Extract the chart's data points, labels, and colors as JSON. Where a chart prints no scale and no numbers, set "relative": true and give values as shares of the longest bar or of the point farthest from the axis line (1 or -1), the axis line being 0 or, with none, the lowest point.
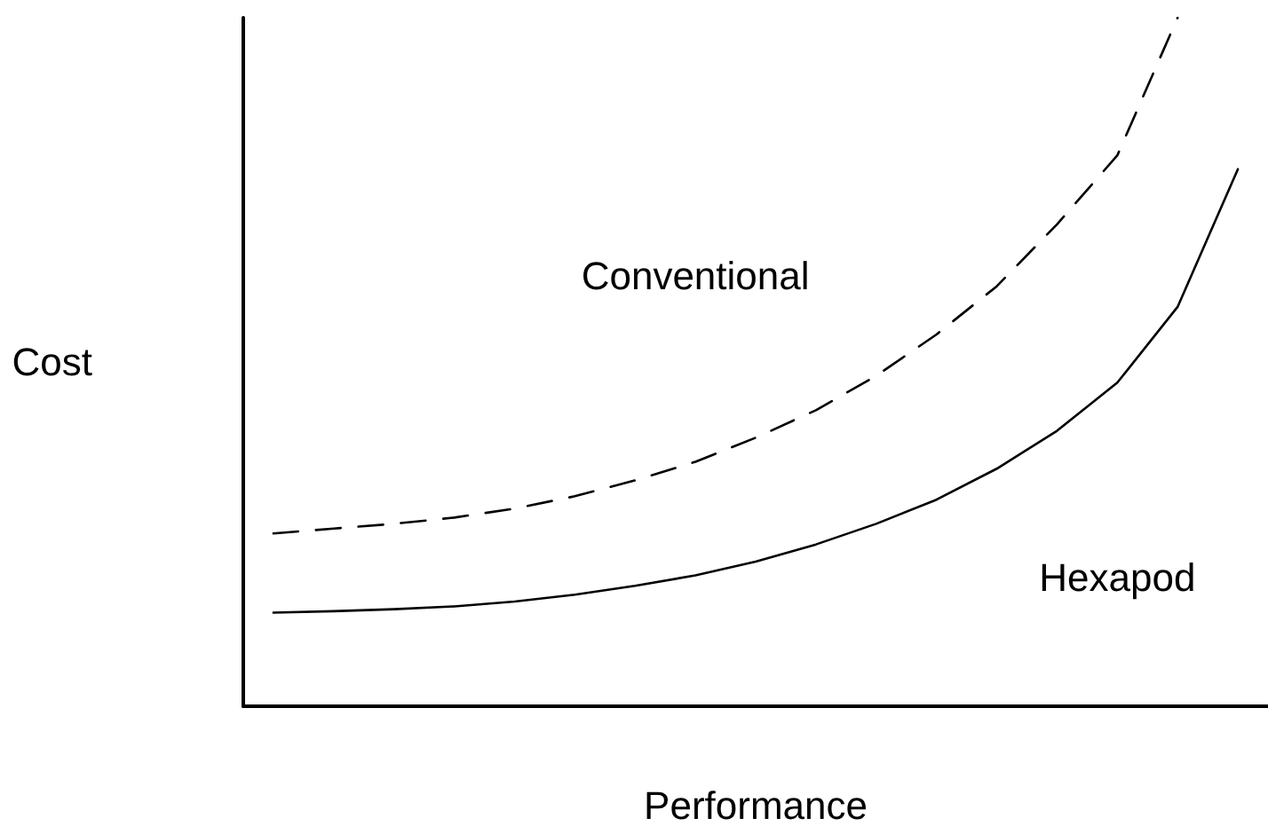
{
  "chart_data": {
    "type": "line",
    "relative": true,
    "xlabel": "Performance",
    "ylabel": "Cost",
    "legend": false,
    "grid": false,
    "marker": "none",
    "categories": [
      null,
      null,
      null,
      null,
      null,
      null,
      null,
      null,
      null,
      null,
      null,
      null,
      null,
      null,
      null,
      null,
      null
    ],
    "series": [
      {
        "name": "Conventional",
        "color": "#000000",
        "line_style": "dashed",
        "values": [
          0.251,
          0.258,
          0.265,
          0.274,
          0.287,
          0.305,
          0.328,
          0.355,
          0.39,
          0.43,
          0.48,
          0.54,
          0.61,
          0.7,
          0.8,
          1.0,
          null
        ]
      },
      {
        "name": "Hexapod",
        "color": "#000000",
        "line_style": "solid",
        "values": [
          0.136,
          0.138,
          0.141,
          0.145,
          0.152,
          0.162,
          0.175,
          0.19,
          0.21,
          0.235,
          0.265,
          0.3,
          0.345,
          0.4,
          0.47,
          0.58,
          0.78
        ]
      }
    ]
  }
}
